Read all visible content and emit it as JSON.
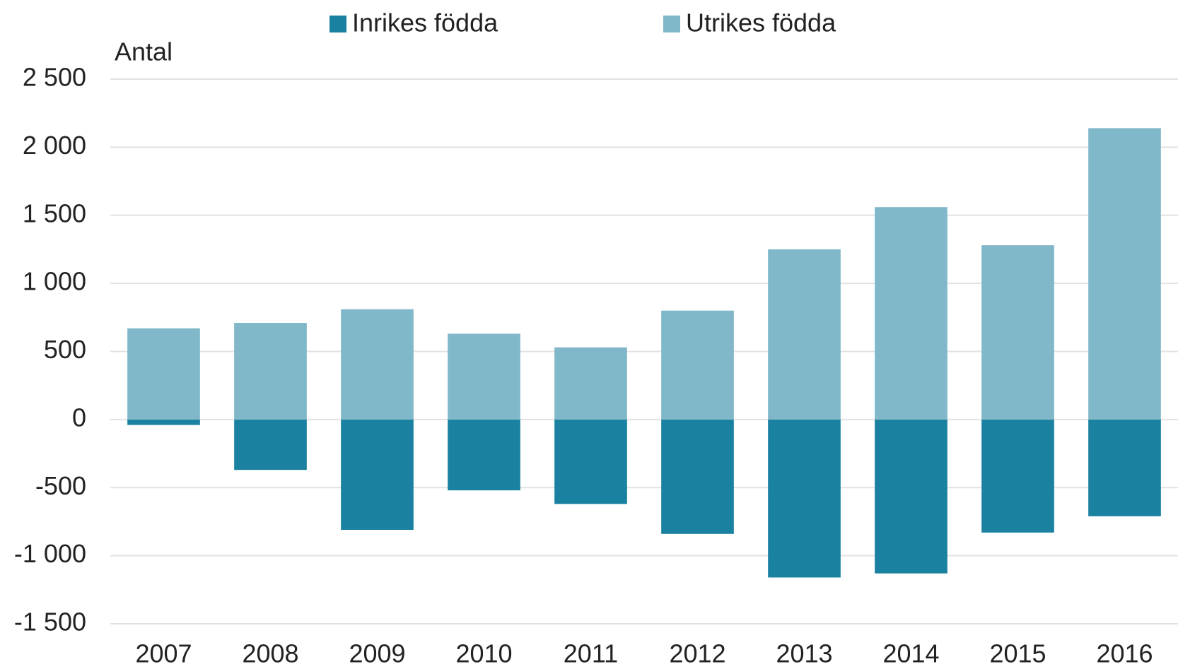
{
  "chart_data": {
    "type": "bar",
    "stacked": true,
    "y_label": "Antal",
    "categories": [
      "2007",
      "2008",
      "2009",
      "2010",
      "2011",
      "2012",
      "2013",
      "2014",
      "2015",
      "2016"
    ],
    "series": [
      {
        "name": "Inrikes födda",
        "color": "#1b81a1",
        "values": [
          -40,
          -370,
          -810,
          -520,
          -620,
          -840,
          -1160,
          -1130,
          -830,
          -710
        ]
      },
      {
        "name": "Utrikes födda",
        "color": "#80b8ca",
        "values": [
          670,
          710,
          810,
          630,
          530,
          800,
          1250,
          1560,
          1280,
          2140
        ]
      }
    ],
    "ylim": [
      -1500,
      2500
    ],
    "yticks": [
      {
        "value": -1500,
        "label": "-1 500"
      },
      {
        "value": -1000,
        "label": "-1 000"
      },
      -500,
      0,
      500,
      {
        "value": 1000,
        "label": "1 000"
      },
      {
        "value": 1500,
        "label": "1 500"
      },
      {
        "value": 2000,
        "label": "2 000"
      },
      {
        "value": 2500,
        "label": "2 500"
      }
    ],
    "grid": true,
    "legend": "top"
  }
}
